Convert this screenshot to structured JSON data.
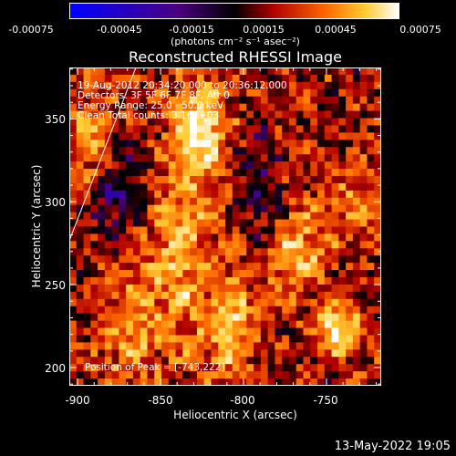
{
  "colorbar": {
    "ticks": [
      "-0.00075",
      "-0.00045",
      "-0.00015",
      "0.00015",
      "0.00045",
      "0.00075"
    ],
    "unit": "(photons cm⁻² s⁻¹ asec⁻²)",
    "range": [
      -0.00075,
      0.00075
    ]
  },
  "title": "Reconstructed RHESSI Image",
  "annotations": {
    "time": "19-Aug-2012 20:34:20.000 to 20:36:12.000",
    "detectors": "Detectors: 3F 5F 6F 7F 8F, Att 0",
    "energy": "Energy Range: 25.0 - 50.0 keV",
    "method": "Clean    Total counts: 3.16E+03",
    "peak": "Position of Peak = [-743,222]"
  },
  "footer": "13-May-2022 19:05",
  "chart_data": {
    "type": "heatmap",
    "title": "Reconstructed RHESSI Image",
    "xlabel": "Heliocentric X (arcsec)",
    "ylabel": "Heliocentric Y (arcsec)",
    "xlim": [
      -905,
      -717
    ],
    "ylim": [
      189,
      381
    ],
    "xticks": [
      -900,
      -850,
      -800,
      -750
    ],
    "yticks": [
      200,
      250,
      300,
      350
    ],
    "colorscale": [
      "#0000ff",
      "#4b007f",
      "#000000",
      "#b30000",
      "#ff6a00",
      "#ffcc33",
      "#ffffff"
    ],
    "peak": [
      -743,
      222
    ]
  }
}
